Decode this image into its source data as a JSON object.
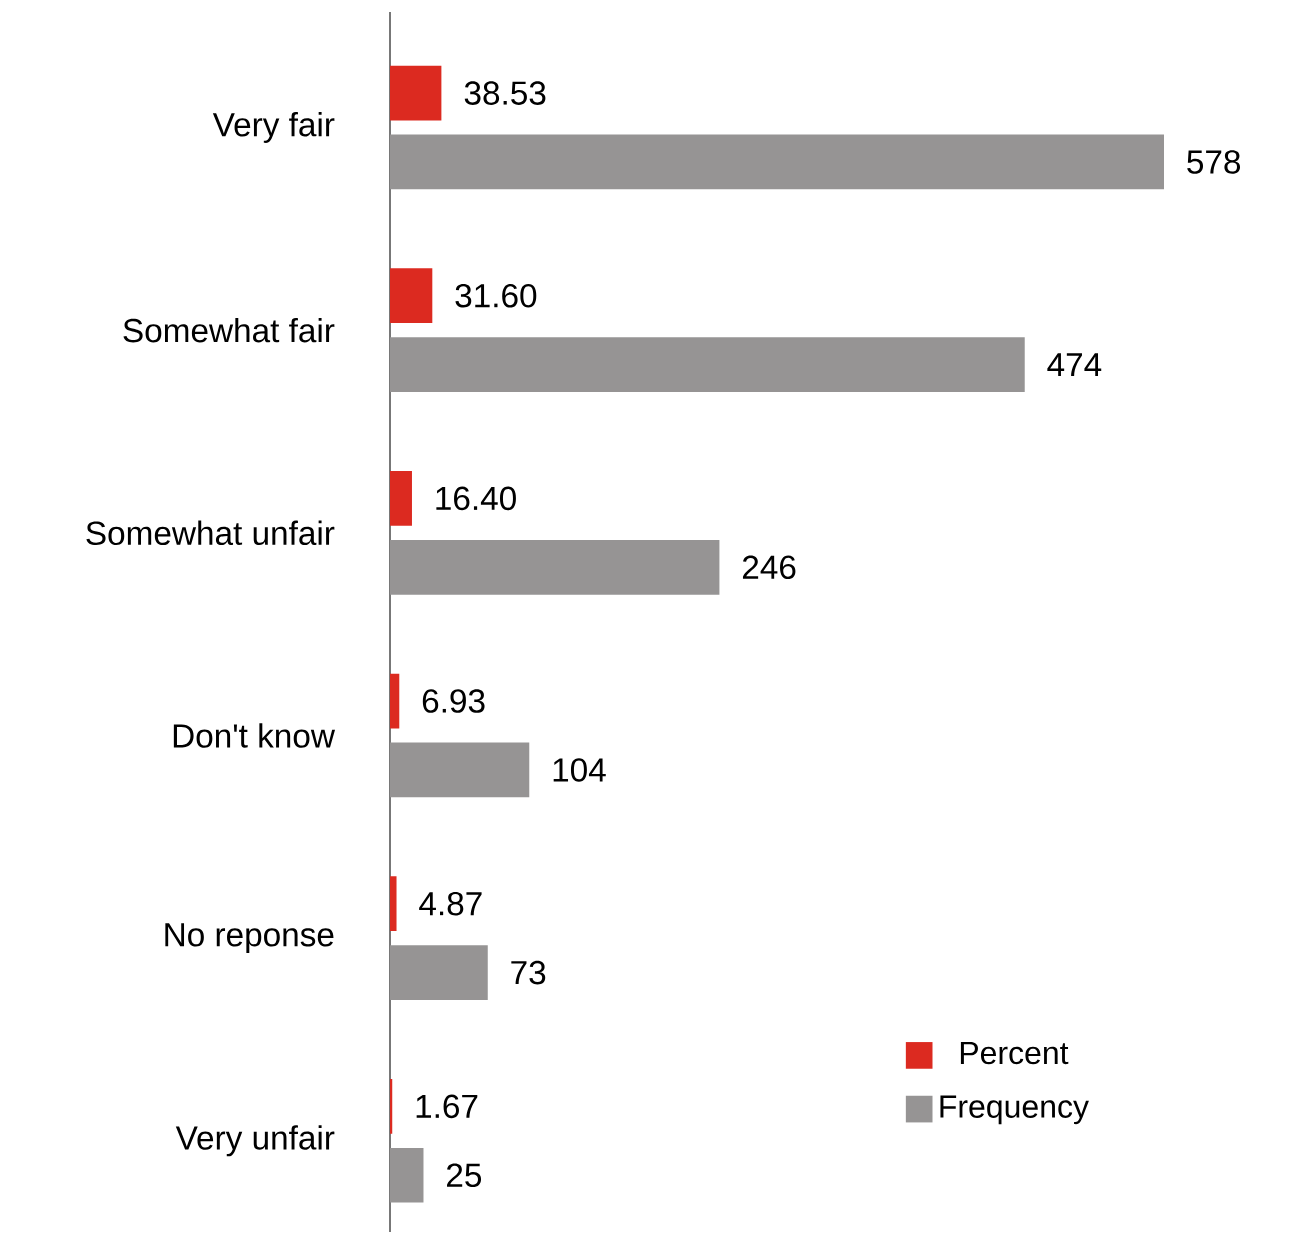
{
  "chart_data": {
    "type": "bar",
    "orientation": "horizontal",
    "categories": [
      "Very fair",
      "Somewhat fair",
      "Somewhat unfair",
      "Don't know",
      "No reponse",
      "Very unfair"
    ],
    "series": [
      {
        "name": "Percent",
        "color": "#dc2a20",
        "values": [
          38.53,
          31.6,
          16.4,
          6.93,
          4.87,
          1.67
        ],
        "value_labels": [
          "38.53",
          "31.60",
          "16.40",
          "6.93",
          "4.87",
          "1.67"
        ]
      },
      {
        "name": "Frequency",
        "color": "#969494",
        "values": [
          578,
          474,
          246,
          104,
          73,
          25
        ],
        "value_labels": [
          "578",
          "474",
          "246",
          "104",
          "73",
          "25"
        ]
      }
    ],
    "legend": "bottom right",
    "tick_labels": "y"
  }
}
